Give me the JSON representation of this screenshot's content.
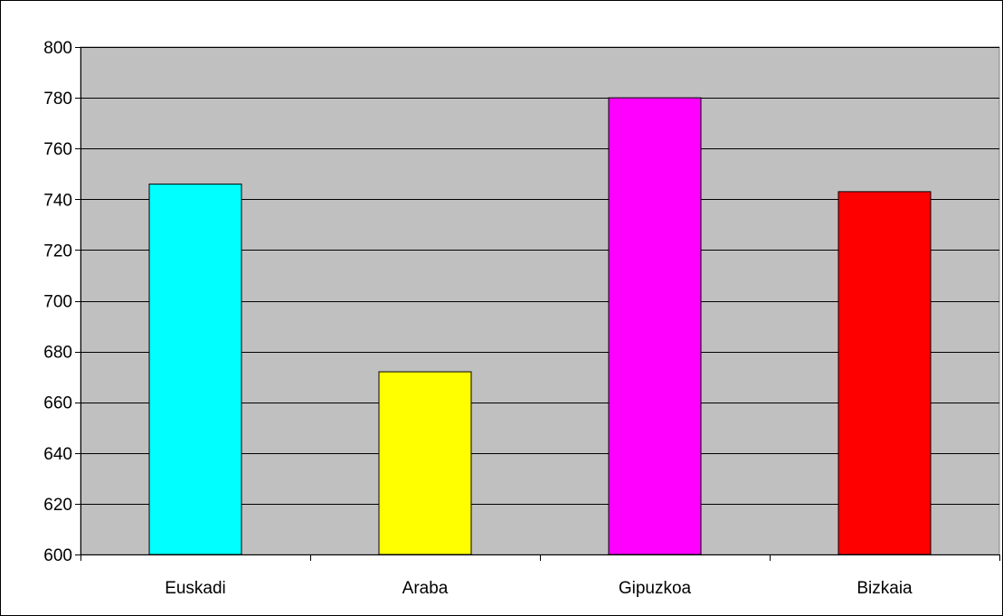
{
  "chart_data": {
    "type": "bar",
    "categories": [
      "Euskadi",
      "Araba",
      "Gipuzkoa",
      "Bizkaia"
    ],
    "values": [
      746,
      672,
      780,
      743
    ],
    "colors": [
      "#00ffff",
      "#ffff00",
      "#ff00ff",
      "#ff0000"
    ],
    "ylim": [
      600,
      800
    ],
    "yticks": [
      600,
      620,
      640,
      660,
      680,
      700,
      720,
      740,
      760,
      780,
      800
    ],
    "ytick_labels": [
      "600",
      "620",
      "640",
      "660",
      "680",
      "700",
      "720",
      "740",
      "760",
      "780",
      "800"
    ],
    "grid": true,
    "plot_background": "#c0c0c0",
    "title": "",
    "xlabel": "",
    "ylabel": ""
  }
}
